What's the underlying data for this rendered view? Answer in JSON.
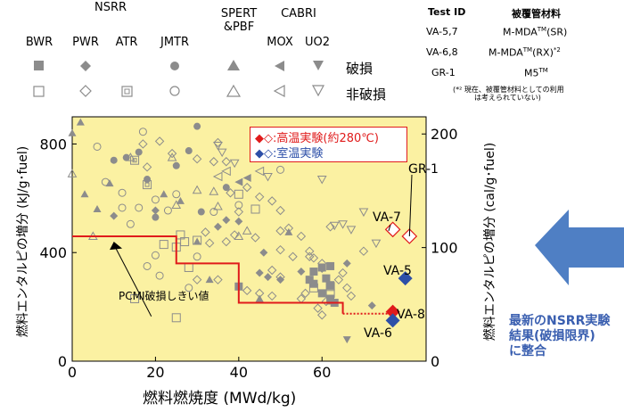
{
  "legend_table": {
    "nsrr_label": "NSRR",
    "spert_label_1": "SPERT",
    "spert_label_2": "&PBF",
    "cabri_label": "CABRI",
    "columns": [
      "BWR",
      "PWR",
      "ATR",
      "JMTR",
      "MOX",
      "UO2"
    ],
    "row_failed": "破損",
    "row_nonfailed": "非破損"
  },
  "material_table": {
    "header_id": "Test ID",
    "header_material": "被覆管材料",
    "rows": [
      {
        "id": "VA-5,7",
        "material": "M-MDA",
        "sup": "TM",
        "suffix": "(SR)",
        "note": ""
      },
      {
        "id": "VA-6,8",
        "material": "M-MDA",
        "sup": "TM",
        "suffix": "(RX)",
        "note": "*2"
      },
      {
        "id": "GR-1",
        "material": "M5",
        "sup": "TM",
        "suffix": "",
        "note": ""
      }
    ],
    "footnote_1": "(*² 現在、被覆管材料としての利用",
    "footnote_2": "は考えられていない)"
  },
  "callout": {
    "line1": "最新のNSRR実験",
    "line2": "結果(破損限界)",
    "line3": "に整合"
  },
  "colors": {
    "plot_bg": "#fbf1a2",
    "threshold": "#e01b1b",
    "high_temp": "#e01b1b",
    "room_temp": "#2d4fa8",
    "marker": "#8c8c8c",
    "arrow": "#4f7fc4"
  },
  "chart_data": {
    "type": "scatter",
    "xlabel": "燃料燃焼度 (MWd/kg)",
    "ylabel": "燃料エンタルピの増分 (kJ/g･fuel)",
    "y2label": "燃料エンタルピの増分 (cal/g･fuel)",
    "xlim": [
      0,
      85
    ],
    "ylim": [
      0,
      900
    ],
    "xticks": [
      "0",
      "20",
      "40",
      "60"
    ],
    "yticks": [
      "0",
      "400",
      "800"
    ],
    "y2ticks": [
      "0",
      "100",
      "200"
    ],
    "legend": {
      "high": "◆◇:高温実験(約280℃)",
      "room": "◆◇:室温実験"
    },
    "threshold_label": "PCMI破損しきい値",
    "threshold": [
      [
        0,
        460
      ],
      [
        25,
        460
      ],
      [
        25,
        360
      ],
      [
        40,
        360
      ],
      [
        40,
        215
      ],
      [
        65,
        215
      ],
      [
        65,
        175
      ]
    ],
    "threshold_dotted": [
      [
        65,
        175
      ],
      [
        77,
        175
      ]
    ],
    "new_tests": [
      {
        "id": "VA-7",
        "x": 77,
        "y": 485,
        "group": "high",
        "failed": false
      },
      {
        "id": "GR-1",
        "x": 81,
        "y": 460,
        "group": "high",
        "failed": false
      },
      {
        "id": "VA-8",
        "x": 77,
        "y": 182,
        "group": "high",
        "failed": true
      },
      {
        "id": "VA-5",
        "x": 80,
        "y": 305,
        "group": "room",
        "failed": true
      },
      {
        "id": "VA-6",
        "x": 77,
        "y": 150,
        "group": "room",
        "failed": true
      }
    ],
    "series": [
      {
        "name": "BWR",
        "failed": [
          [
            40,
            275
          ],
          [
            57,
            300
          ],
          [
            58,
            330
          ],
          [
            60,
            345
          ],
          [
            62,
            350
          ],
          [
            61,
            305
          ],
          [
            58,
            285
          ],
          [
            62,
            280
          ],
          [
            60,
            250
          ],
          [
            62,
            230
          ],
          [
            63,
            215
          ]
        ],
        "nonfailed": [
          [
            40,
            615
          ],
          [
            26,
            465
          ],
          [
            27,
            440
          ],
          [
            30,
            445
          ],
          [
            22,
            430
          ],
          [
            25,
            420
          ],
          [
            44,
            560
          ],
          [
            28,
            345
          ],
          [
            15,
            230
          ],
          [
            25,
            160
          ],
          [
            58,
            270
          ],
          [
            62,
            275
          ],
          [
            62,
            250
          ]
        ]
      },
      {
        "name": "PWR",
        "failed": [
          [
            10,
            535
          ],
          [
            20,
            555
          ],
          [
            35,
            495
          ],
          [
            37,
            520
          ],
          [
            40,
            515
          ],
          [
            45,
            325
          ],
          [
            46,
            400
          ],
          [
            47,
            310
          ],
          [
            50,
            300
          ],
          [
            55,
            330
          ],
          [
            60,
            340
          ],
          [
            66,
            360
          ],
          [
            72,
            205
          ]
        ],
        "nonfailed": [
          [
            17,
            800
          ],
          [
            18,
            715
          ],
          [
            21,
            810
          ],
          [
            24,
            765
          ],
          [
            30,
            745
          ],
          [
            34,
            735
          ],
          [
            35,
            805
          ],
          [
            37,
            735
          ],
          [
            38,
            620
          ],
          [
            42,
            640
          ],
          [
            45,
            605
          ],
          [
            48,
            590
          ],
          [
            50,
            555
          ],
          [
            52,
            490
          ],
          [
            55,
            460
          ],
          [
            57,
            385
          ],
          [
            58,
            380
          ],
          [
            60,
            360
          ],
          [
            62,
            495
          ],
          [
            65,
            325
          ],
          [
            66,
            270
          ],
          [
            64,
            300
          ],
          [
            67,
            240
          ],
          [
            48,
            335
          ],
          [
            50,
            310
          ],
          [
            42,
            260
          ],
          [
            33,
            435
          ],
          [
            32,
            475
          ],
          [
            39,
            465
          ],
          [
            50,
            480
          ],
          [
            56,
            250
          ],
          [
            48,
            240
          ],
          [
            70,
            405
          ],
          [
            40,
            550
          ],
          [
            50,
            410
          ],
          [
            44,
            455
          ],
          [
            37,
            440
          ],
          [
            53,
            385
          ],
          [
            57,
            405
          ],
          [
            61,
            220
          ],
          [
            59,
            195
          ],
          [
            60,
            170
          ],
          [
            55,
            230
          ],
          [
            45,
            250
          ],
          [
            35,
            300
          ],
          [
            30,
            300
          ]
        ]
      },
      {
        "name": "ATR",
        "failed": [],
        "nonfailed": [
          [
            15,
            740
          ],
          [
            18,
            650
          ]
        ]
      },
      {
        "name": "JMTR",
        "failed": [
          [
            13,
            750
          ],
          [
            16,
            770
          ],
          [
            18,
            670
          ],
          [
            25,
            720
          ],
          [
            28,
            775
          ],
          [
            30,
            865
          ],
          [
            20,
            530
          ],
          [
            31,
            550
          ],
          [
            37,
            640
          ],
          [
            10,
            740
          ]
        ],
        "nonfailed": [
          [
            6,
            790
          ],
          [
            12,
            565
          ],
          [
            16,
            565
          ],
          [
            17,
            845
          ],
          [
            20,
            595
          ],
          [
            25,
            615
          ],
          [
            14,
            505
          ],
          [
            23,
            555
          ],
          [
            30,
            385
          ],
          [
            20,
            390
          ],
          [
            18,
            350
          ],
          [
            28,
            270
          ],
          [
            21,
            315
          ],
          [
            34,
            550
          ],
          [
            8,
            660
          ],
          [
            12,
            620
          ],
          [
            40,
            575
          ],
          [
            50,
            705
          ]
        ]
      },
      {
        "name": "SPERT&PBF",
        "failed": [
          [
            0,
            840
          ],
          [
            2,
            880
          ],
          [
            3,
            615
          ],
          [
            6,
            560
          ],
          [
            9,
            655
          ],
          [
            22,
            615
          ],
          [
            26,
            590
          ],
          [
            30,
            440
          ],
          [
            33,
            300
          ],
          [
            45,
            230
          ],
          [
            52,
            475
          ],
          [
            62,
            220
          ]
        ],
        "nonfailed": [
          [
            0,
            690
          ],
          [
            5,
            460
          ],
          [
            14,
            750
          ],
          [
            24,
            750
          ],
          [
            30,
            630
          ],
          [
            25,
            575
          ],
          [
            34,
            625
          ],
          [
            35,
            570
          ],
          [
            40,
            460
          ],
          [
            42,
            480
          ]
        ]
      },
      {
        "name": "MOX",
        "failed": [
          [
            40,
            660
          ],
          [
            42,
            675
          ]
        ],
        "nonfailed": [
          [
            35,
            680
          ],
          [
            37,
            700
          ],
          [
            45,
            700
          ]
        ]
      },
      {
        "name": "UO2",
        "failed": [
          [
            66,
            80
          ]
        ],
        "nonfailed": [
          [
            35,
            795
          ],
          [
            36,
            770
          ],
          [
            39,
            730
          ],
          [
            47,
            680
          ],
          [
            60,
            670
          ],
          [
            63,
            500
          ],
          [
            65,
            505
          ],
          [
            70,
            550
          ],
          [
            73,
            435
          ],
          [
            67,
            485
          ]
        ]
      }
    ]
  }
}
